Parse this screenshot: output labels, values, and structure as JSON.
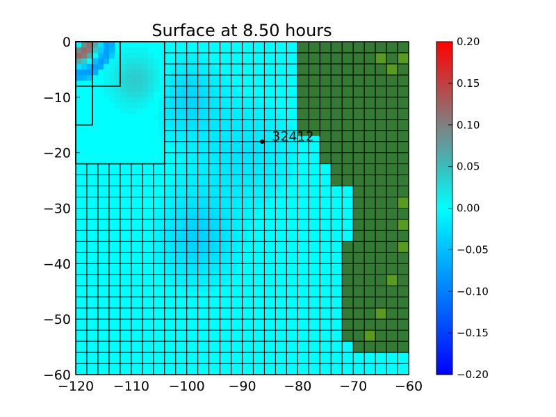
{
  "chart_data": {
    "type": "heatmap",
    "title": "Surface at 8.50 hours",
    "xlabel": "",
    "ylabel": "",
    "xlim": [
      -120,
      -60
    ],
    "ylim": [
      -60,
      0
    ],
    "x_ticks": [
      "−120",
      "−110",
      "−100",
      "−90",
      "−80",
      "−70",
      "−60"
    ],
    "x_tick_values": [
      -120,
      -110,
      -100,
      -90,
      -80,
      -70,
      -60
    ],
    "y_ticks": [
      "0",
      "−10",
      "−20",
      "−30",
      "−40",
      "−50",
      "−60"
    ],
    "y_tick_values": [
      0,
      -10,
      -20,
      -30,
      -40,
      -50,
      -60
    ],
    "colorbar": {
      "range": [
        -0.2,
        0.2
      ],
      "ticks": [
        "0.20",
        "0.15",
        "0.10",
        "0.05",
        "0.00",
        "−0.05",
        "−0.10",
        "−0.15",
        "−0.20"
      ],
      "tick_values": [
        0.2,
        0.15,
        0.1,
        0.05,
        0.0,
        -0.05,
        -0.1,
        -0.15,
        -0.2
      ],
      "colors": [
        {
          "v": -0.2,
          "c": "#0000ff"
        },
        {
          "v": -0.1,
          "c": "#0080ff"
        },
        {
          "v": 0.0,
          "c": "#00ffff"
        },
        {
          "v": 0.05,
          "c": "#3cbcbc"
        },
        {
          "v": 0.1,
          "c": "#808080"
        },
        {
          "v": 0.2,
          "c": "#ff0000"
        }
      ]
    },
    "coarse_grid_step": 2,
    "land_color": "#347a34",
    "land_color_light": "#5a9a20",
    "water_color": "#00ffff",
    "land_columns": [
      {
        "x": -80,
        "y_from": -17,
        "y_to": 0
      },
      {
        "x": -76,
        "y_from": -22,
        "y_to": -12
      },
      {
        "x": -74,
        "y_from": -26,
        "y_to": -16
      },
      {
        "x": -72,
        "y_from": -54,
        "y_to": -36
      },
      {
        "x": -70,
        "y_from": -56,
        "y_to": -18
      },
      {
        "x": -68,
        "y_from": -52,
        "y_to": -16
      },
      {
        "x": -66,
        "y_from": -46,
        "y_to": -8
      }
    ],
    "refinement_boxes": [
      {
        "x": [
          -120,
          -104
        ],
        "y": [
          -22,
          0
        ]
      },
      {
        "x": [
          -120,
          -112
        ],
        "y": [
          -8,
          0
        ]
      },
      {
        "x": [
          -120,
          -117
        ],
        "y": [
          -15,
          0
        ]
      }
    ],
    "gauge": {
      "label": "32412",
      "x": -86.4,
      "y": -18.0
    }
  }
}
